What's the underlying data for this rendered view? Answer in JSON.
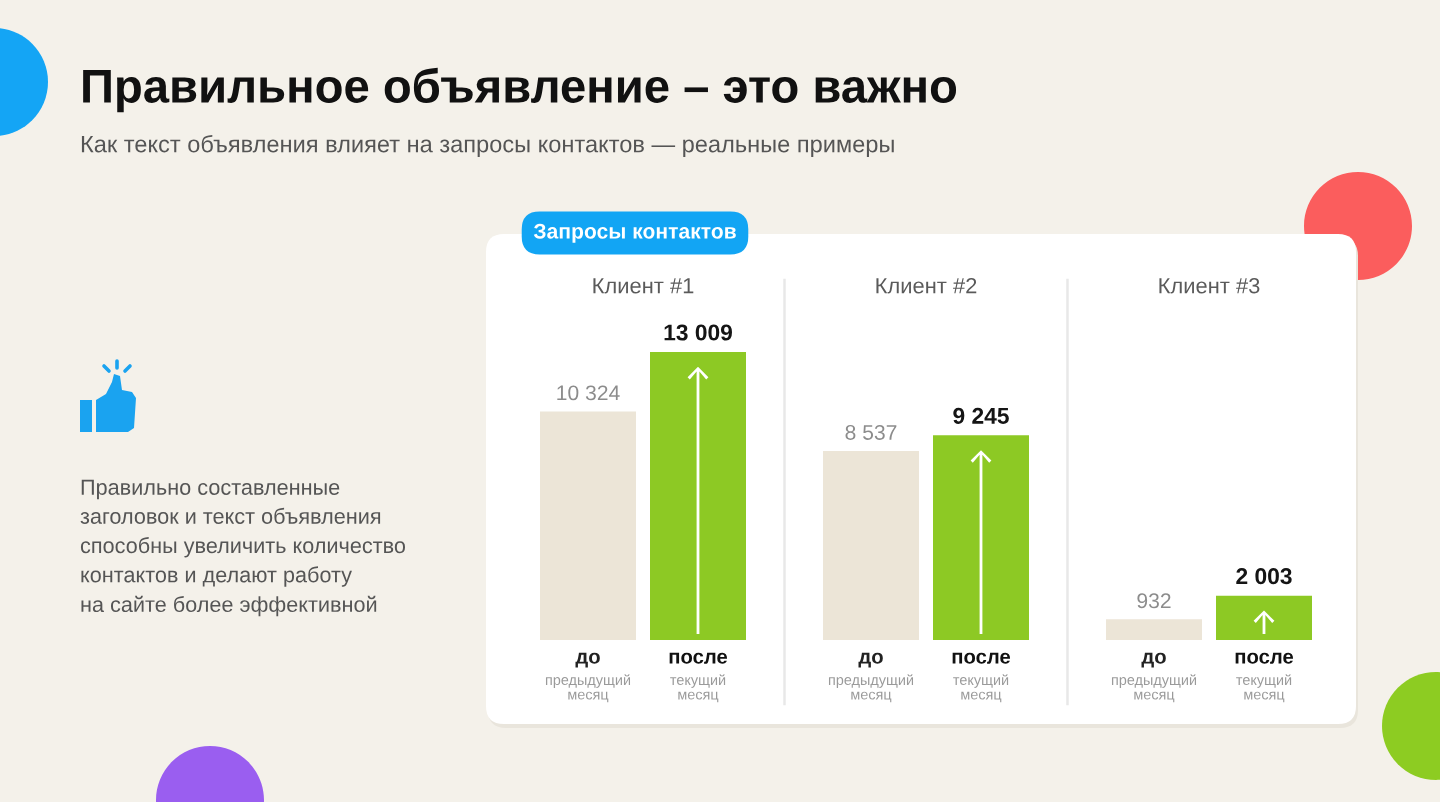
{
  "chart_data": {
    "type": "bar",
    "title": "Правильное объявление – это важно",
    "subtitle": "Как текст объявления влияет на запросы контактов — реальные примеры",
    "annotations": [
      "Запросы контактов",
      "Правильно составленные\nзаголовок и текст объявления\nспособны увеличить количество\nконтактов и делают работу\nна сайте более эффективной"
    ],
    "categories": [
      "Клиент #1",
      "Клиент #2",
      "Клиент #3"
    ],
    "series": [
      {
        "name": "до\nпредыдущий\nмесяц",
        "color": "#ece5d7",
        "values": [
          10324,
          8537,
          932
        ],
        "value_labels": [
          "10 324",
          "8 537",
          "932"
        ]
      },
      {
        "name": "после\nтекущий\nмесяц",
        "color": "#8dc924",
        "values": [
          13009,
          9245,
          2003
        ],
        "value_labels": [
          "13 009",
          "9 245",
          "2 003"
        ]
      }
    ],
    "tick_labels": "x"
  }
}
